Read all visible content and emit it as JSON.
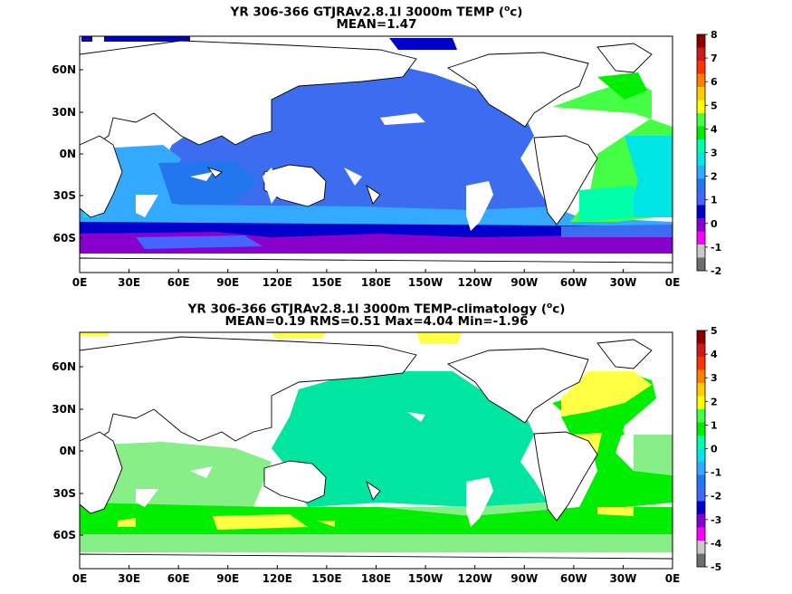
{
  "panels": [
    {
      "title_prefix": "YR 306-366 GTJRAv2.8.1l 3000m TEMP (",
      "title_unit_sup": "o",
      "title_suffix": "c)",
      "subtitle": "MEAN=1.47",
      "colorbar_ticks": [
        "8",
        "7",
        "6",
        "5",
        "4",
        "3",
        "2",
        "1",
        "0",
        "-1",
        "-2"
      ],
      "colorbar_colors": [
        "#8b0000",
        "#cc1a1a",
        "#ff3300",
        "#ff8000",
        "#ffcc00",
        "#ffff00",
        "#44ff44",
        "#00ee00",
        "#00ffaa",
        "#00e5e5",
        "#33aaff",
        "#2277ee",
        "#4466ff",
        "#0000cc",
        "#8800cc",
        "#ff00ff",
        "#c8c8c8",
        "#6e6e6e"
      ]
    },
    {
      "title_prefix": "YR 306-366 GTJRAv2.8.1l 3000m TEMP-climatology (",
      "title_unit_sup": "o",
      "title_suffix": "c)",
      "subtitle": "MEAN=0.19   RMS=0.51   Max=4.04   Min=-1.96",
      "colorbar_ticks": [
        "5",
        "4",
        "3",
        "2",
        "1",
        "0",
        "-1",
        "-2",
        "-3",
        "-4",
        "-5"
      ],
      "colorbar_colors": [
        "#8b0000",
        "#cc1a1a",
        "#ff3300",
        "#ff8000",
        "#ffcc00",
        "#ffff00",
        "#44ff44",
        "#00ee00",
        "#00ffaa",
        "#00e5e5",
        "#33aaff",
        "#2277ee",
        "#4466ff",
        "#0000cc",
        "#8800cc",
        "#ff00ff",
        "#c8c8c8",
        "#6e6e6e"
      ]
    }
  ],
  "x_ticks": [
    "0E",
    "30E",
    "60E",
    "90E",
    "120E",
    "150E",
    "180E",
    "150W",
    "120W",
    "90W",
    "60W",
    "30W",
    "0E"
  ],
  "y_ticks": [
    "60N",
    "30N",
    "0N",
    "30S",
    "60S"
  ]
}
